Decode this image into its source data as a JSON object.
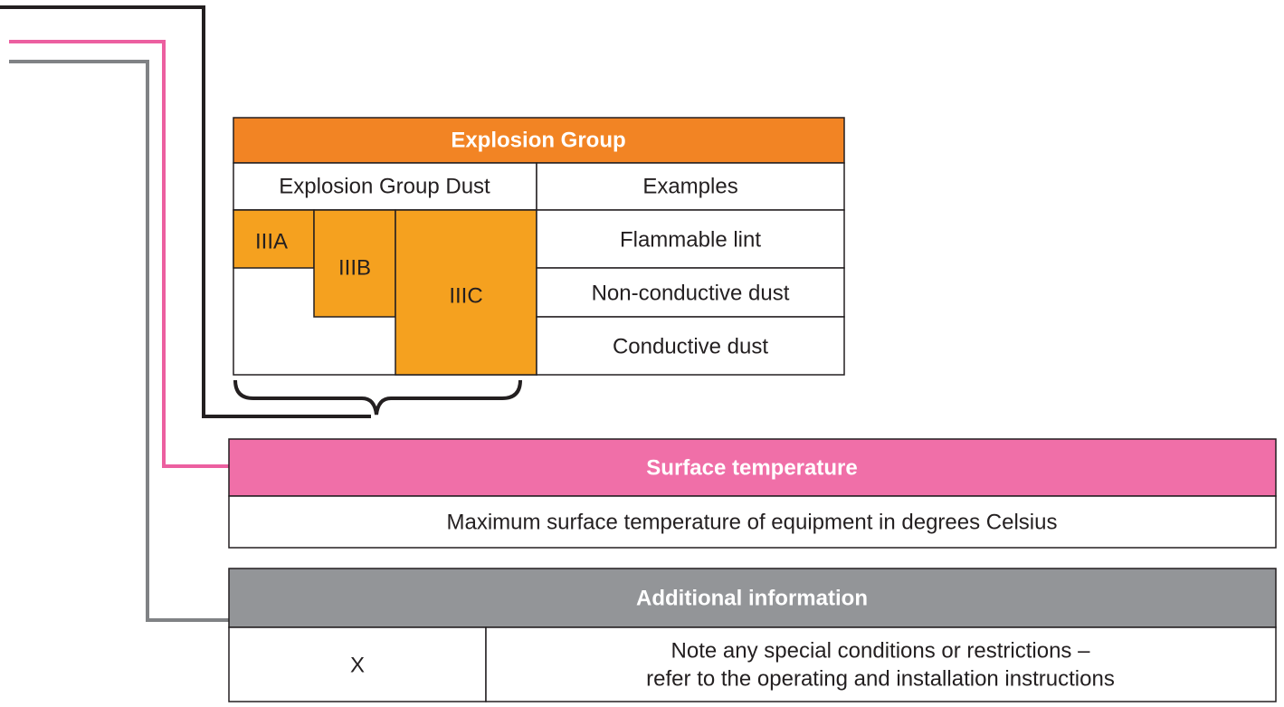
{
  "explosion_group": {
    "title": "Explosion Group",
    "headers": [
      "Explosion Group Dust",
      "Examples"
    ],
    "groups": [
      "IIIA",
      "IIIB",
      "IIIC"
    ],
    "examples": [
      "Flammable lint",
      "Non-conductive dust",
      "Conductive dust"
    ]
  },
  "surface_temperature": {
    "title": "Surface temperature",
    "description": "Maximum surface temperature of equipment in degrees Celsius"
  },
  "additional_information": {
    "title": "Additional information",
    "code": "X",
    "note_lines": [
      "Note any special conditions or restrictions –",
      "refer to the operating and installation instructions"
    ]
  }
}
